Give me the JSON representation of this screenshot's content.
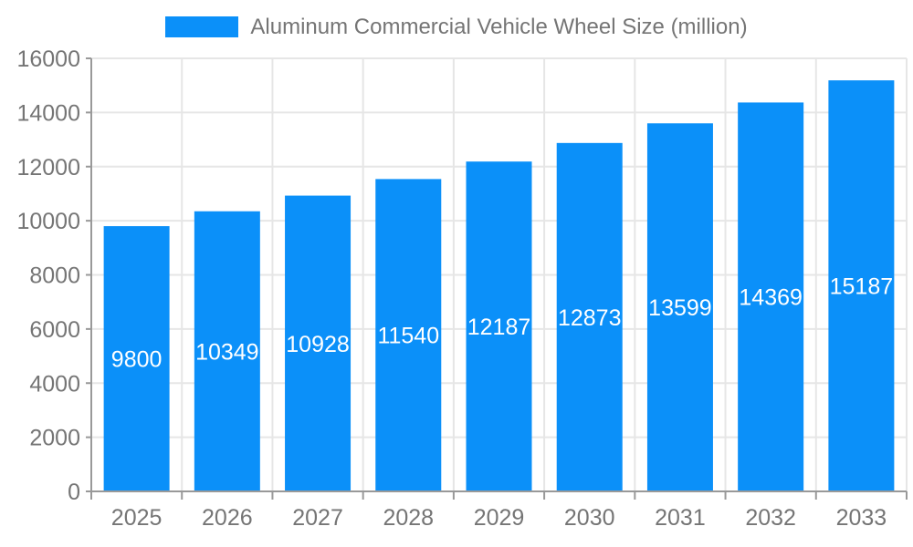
{
  "chart_data": {
    "type": "bar",
    "title": "Aluminum Commercial Vehicle Wheel Size (million)",
    "categories": [
      "2025",
      "2026",
      "2027",
      "2028",
      "2029",
      "2030",
      "2031",
      "2032",
      "2033"
    ],
    "values": [
      9800,
      10349,
      10928,
      11540,
      12187,
      12873,
      13599,
      14369,
      15187
    ],
    "xlabel": "",
    "ylabel": "",
    "ylim": [
      0,
      16000
    ],
    "ytick_interval": 2000,
    "yticks": [
      0,
      2000,
      4000,
      6000,
      8000,
      10000,
      12000,
      14000,
      16000
    ],
    "grid": true,
    "legend_position": "top",
    "bar_labels_inside": true,
    "colors": {
      "bar": "#0b90f9",
      "grid": "#e6e6e6",
      "axis": "#999999",
      "tick_label": "#757575",
      "bar_label": "#ffffff",
      "legend_text": "#757575"
    }
  }
}
